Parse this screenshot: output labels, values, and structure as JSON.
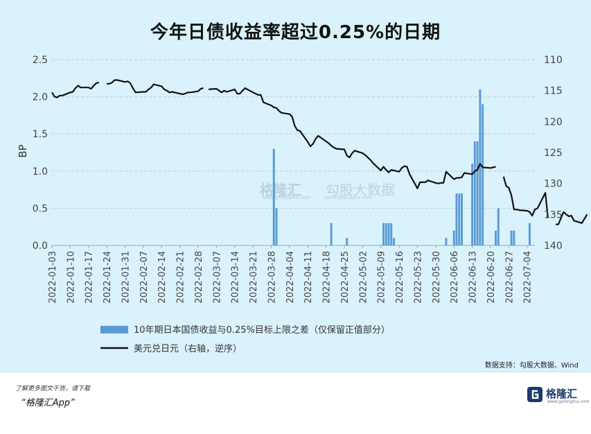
{
  "title": "今年日债收益率超过0.25%的日期",
  "source": "数据支持：勾股大数据、Wind",
  "footer": {
    "line1": "了解更多图文干货，请下载",
    "line2": "“格隆汇App”"
  },
  "logo": {
    "name": "格隆汇",
    "url": "www.gelonghui.com"
  },
  "watermark": {
    "left": "格隆汇",
    "right": "勾股大数据",
    "left_url": "www.gelonghui.com",
    "right_url": "www.gogudata.com"
  },
  "colors": {
    "bar": "#5b9bd5",
    "line": "#111111",
    "background": "#d9f2fc",
    "grid": "#bfcfd8"
  },
  "chart_data": {
    "type": "bar+line",
    "ylabel": "BP",
    "ylim": [
      0,
      2.5
    ],
    "yticks": [
      "0.0",
      "0.5",
      "1.0",
      "1.5",
      "2.0",
      "2.5"
    ],
    "y2lim": [
      110,
      140
    ],
    "y2ticks": [
      "110",
      "115",
      "120",
      "125",
      "130",
      "135",
      "140"
    ],
    "y2_reversed": true,
    "x_start": "2022-01-03",
    "x_end": "2022-07-04",
    "xticks": [
      "2022-01-03",
      "2022-01-10",
      "2022-01-17",
      "2022-01-24",
      "2022-01-31",
      "2022-02-07",
      "2022-02-14",
      "2022-02-21",
      "2022-02-28",
      "2022-03-07",
      "2022-03-14",
      "2022-03-21",
      "2022-03-28",
      "2022-04-04",
      "2022-04-11",
      "2022-04-18",
      "2022-04-25",
      "2022-05-02",
      "2022-05-09",
      "2022-05-16",
      "2022-05-23",
      "2022-05-30",
      "2022-06-06",
      "2022-06-13",
      "2022-06-20",
      "2022-06-27",
      "2022-07-04"
    ],
    "legend": [
      {
        "label": "10年期日本国债收益与0.25%目标上限之差（仅保留正值部分）",
        "kind": "bar"
      },
      {
        "label": "美元兑日元（右轴，逆序）",
        "kind": "line"
      }
    ],
    "bars": [
      [
        "2022-03-29",
        1.3
      ],
      [
        "2022-03-30",
        0.5
      ],
      [
        "2022-04-20",
        0.3
      ],
      [
        "2022-04-26",
        0.1
      ],
      [
        "2022-05-10",
        0.3
      ],
      [
        "2022-05-11",
        0.3
      ],
      [
        "2022-05-12",
        0.3
      ],
      [
        "2022-05-13",
        0.3
      ],
      [
        "2022-05-14",
        0.1
      ],
      [
        "2022-06-03",
        0.1
      ],
      [
        "2022-06-06",
        0.2
      ],
      [
        "2022-06-07",
        0.7
      ],
      [
        "2022-06-08",
        0.7
      ],
      [
        "2022-06-09",
        0.7
      ],
      [
        "2022-06-13",
        1.1
      ],
      [
        "2022-06-14",
        1.4
      ],
      [
        "2022-06-15",
        1.4
      ],
      [
        "2022-06-16",
        2.1
      ],
      [
        "2022-06-17",
        1.9
      ],
      [
        "2022-06-22",
        0.2
      ],
      [
        "2022-06-23",
        0.5
      ],
      [
        "2022-06-28",
        0.2
      ],
      [
        "2022-06-29",
        0.2
      ],
      [
        "2022-07-05",
        0.3
      ]
    ],
    "line_segments": [
      [
        [
          "2022-01-03",
          115.3
        ],
        [
          "2022-01-04",
          116.0
        ],
        [
          "2022-01-05",
          116.1
        ],
        [
          "2022-01-06",
          115.8
        ],
        [
          "2022-01-07",
          115.8
        ],
        [
          "2022-01-10",
          115.3
        ],
        [
          "2022-01-11",
          115.2
        ],
        [
          "2022-01-12",
          114.6
        ],
        [
          "2022-01-13",
          114.2
        ],
        [
          "2022-01-14",
          114.5
        ],
        [
          "2022-01-17",
          114.5
        ],
        [
          "2022-01-18",
          114.7
        ],
        [
          "2022-01-19",
          114.2
        ],
        [
          "2022-01-20",
          113.8
        ],
        [
          "2022-01-21",
          113.7
        ]
      ],
      [
        [
          "2022-01-24",
          113.9
        ],
        [
          "2022-01-25",
          113.9
        ],
        [
          "2022-01-26",
          113.7
        ],
        [
          "2022-01-27",
          113.3
        ],
        [
          "2022-01-28",
          113.3
        ],
        [
          "2022-01-31",
          113.6
        ],
        [
          "2022-02-01",
          113.5
        ],
        [
          "2022-02-02",
          113.8
        ],
        [
          "2022-02-03",
          114.6
        ],
        [
          "2022-02-04",
          115.3
        ],
        [
          "2022-02-07",
          115.2
        ],
        [
          "2022-02-08",
          115.2
        ],
        [
          "2022-02-09",
          114.8
        ],
        [
          "2022-02-10",
          114.5
        ],
        [
          "2022-02-11",
          114.0
        ],
        [
          "2022-02-14",
          114.3
        ],
        [
          "2022-02-15",
          114.8
        ],
        [
          "2022-02-16",
          115.0
        ],
        [
          "2022-02-17",
          115.3
        ],
        [
          "2022-02-18",
          115.2
        ],
        [
          "2022-02-21",
          115.5
        ],
        [
          "2022-02-22",
          115.6
        ],
        [
          "2022-02-23",
          115.5
        ],
        [
          "2022-02-24",
          115.3
        ],
        [
          "2022-02-25",
          115.3
        ],
        [
          "2022-02-28",
          115.1
        ],
        [
          "2022-03-01",
          114.7
        ],
        [
          "2022-03-02",
          114.6
        ]
      ],
      [
        [
          "2022-03-04",
          114.8
        ],
        [
          "2022-03-07",
          114.7
        ],
        [
          "2022-03-08",
          115.0
        ],
        [
          "2022-03-09",
          115.3
        ],
        [
          "2022-03-10",
          115.0
        ],
        [
          "2022-03-11",
          115.2
        ],
        [
          "2022-03-14",
          114.8
        ],
        [
          "2022-03-15",
          115.5
        ],
        [
          "2022-03-16",
          115.5
        ],
        [
          "2022-03-17",
          115.0
        ],
        [
          "2022-03-18",
          114.6
        ],
        [
          "2022-03-21",
          115.3
        ],
        [
          "2022-03-22",
          115.5
        ],
        [
          "2022-03-23",
          115.7
        ],
        [
          "2022-03-24",
          115.7
        ],
        [
          "2022-03-25",
          116.9
        ],
        [
          "2022-03-28",
          117.4
        ],
        [
          "2022-03-29",
          117.7
        ],
        [
          "2022-03-30",
          117.8
        ],
        [
          "2022-03-31",
          118.3
        ],
        [
          "2022-04-01",
          118.6
        ],
        [
          "2022-04-04",
          118.8
        ],
        [
          "2022-04-05",
          119.2
        ],
        [
          "2022-04-06",
          120.7
        ],
        [
          "2022-04-07",
          121.4
        ],
        [
          "2022-04-08",
          121.5
        ],
        [
          "2022-04-11",
          123.3
        ],
        [
          "2022-04-12",
          124.0
        ],
        [
          "2022-04-13",
          123.6
        ],
        [
          "2022-04-14",
          122.8
        ],
        [
          "2022-04-15",
          122.3
        ],
        [
          "2022-04-18",
          123.2
        ],
        [
          "2022-04-19",
          123.5
        ],
        [
          "2022-04-20",
          123.9
        ],
        [
          "2022-04-21",
          124.2
        ],
        [
          "2022-04-22",
          124.4
        ],
        [
          "2022-04-25",
          124.5
        ],
        [
          "2022-04-26",
          125.5
        ],
        [
          "2022-04-27",
          125.8
        ],
        [
          "2022-04-28",
          125.1
        ],
        [
          "2022-04-29",
          124.7
        ],
        [
          "2022-05-02",
          125.1
        ],
        [
          "2022-05-03",
          125.4
        ],
        [
          "2022-05-04",
          125.8
        ],
        [
          "2022-05-05",
          126.2
        ],
        [
          "2022-05-06",
          126.7
        ],
        [
          "2022-05-09",
          127.9
        ],
        [
          "2022-05-10",
          127.3
        ],
        [
          "2022-05-11",
          127.8
        ],
        [
          "2022-05-12",
          128.2
        ],
        [
          "2022-05-13",
          127.8
        ],
        [
          "2022-05-16",
          128.1
        ],
        [
          "2022-05-17",
          127.5
        ],
        [
          "2022-05-18",
          127.2
        ],
        [
          "2022-05-19",
          127.3
        ],
        [
          "2022-05-20",
          128.5
        ],
        [
          "2022-05-23",
          130.8
        ],
        [
          "2022-05-24",
          129.8
        ],
        [
          "2022-05-25",
          129.8
        ],
        [
          "2022-05-26",
          129.8
        ],
        [
          "2022-05-27",
          129.5
        ],
        [
          "2022-05-30",
          129.9
        ],
        [
          "2022-05-31",
          130.0
        ],
        [
          "2022-06-01",
          129.9
        ],
        [
          "2022-06-02",
          129.9
        ],
        [
          "2022-06-03",
          128.1
        ],
        [
          "2022-06-06",
          129.3
        ],
        [
          "2022-06-07",
          129.1
        ],
        [
          "2022-06-08",
          129.1
        ],
        [
          "2022-06-09",
          129.0
        ],
        [
          "2022-06-10",
          128.3
        ],
        [
          "2022-06-13",
          128.5
        ],
        [
          "2022-06-14",
          128.0
        ],
        [
          "2022-06-15",
          127.8
        ],
        [
          "2022-06-16",
          126.8
        ],
        [
          "2022-06-17",
          127.4
        ],
        [
          "2022-06-20",
          127.5
        ],
        [
          "2022-06-21",
          127.4
        ],
        [
          "2022-06-22",
          127.3
        ]
      ],
      [
        [
          "2022-06-25",
          128.9
        ],
        [
          "2022-06-26",
          130.4
        ],
        [
          "2022-06-27",
          130.7
        ],
        [
          "2022-06-28",
          131.9
        ],
        [
          "2022-06-29",
          134.2
        ],
        [
          "2022-06-30",
          134.2
        ],
        [
          "2022-07-01",
          134.3
        ],
        [
          "2022-07-04",
          134.4
        ],
        [
          "2022-07-05",
          134.6
        ],
        [
          "2022-07-06",
          135.2
        ],
        [
          "2022-07-07",
          134.2
        ],
        [
          "2022-07-08",
          134.0
        ],
        [
          "2022-07-11",
          131.5
        ],
        [
          "2022-07-12",
          135.5
        ]
      ],
      [
        [
          "2022-07-15",
          136.6
        ],
        [
          "2022-07-16",
          136.6
        ],
        [
          "2022-07-18",
          134.6
        ],
        [
          "2022-07-19",
          135.0
        ],
        [
          "2022-07-20",
          135.3
        ],
        [
          "2022-07-21",
          135.2
        ],
        [
          "2022-07-22",
          136.0
        ],
        [
          "2022-07-25",
          136.4
        ],
        [
          "2022-07-26",
          135.7
        ],
        [
          "2022-07-27",
          135.0
        ]
      ]
    ]
  }
}
